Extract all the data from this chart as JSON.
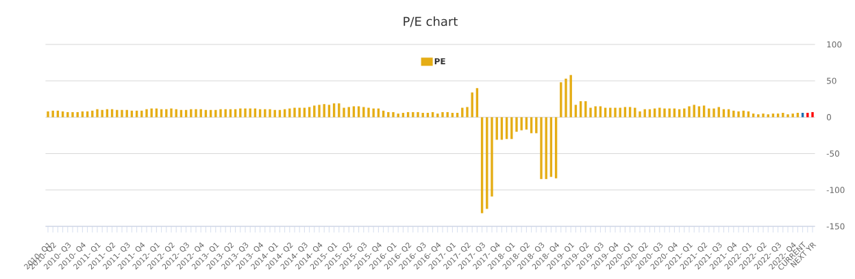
{
  "chart_data": {
    "type": "bar",
    "title": "P/E chart",
    "categories": [
      "2010- Q1",
      "2010- Q2",
      null,
      null,
      "2010- Q3",
      null,
      null,
      "2010- Q4",
      null,
      null,
      "2011- Q1",
      null,
      null,
      "2011- Q2",
      null,
      null,
      "2011- Q3",
      null,
      null,
      "2011- Q4",
      null,
      null,
      "2012- Q1",
      null,
      null,
      "2012- Q2",
      null,
      null,
      "2012- Q3",
      null,
      null,
      "2012- Q4",
      null,
      null,
      "2013- Q1",
      null,
      null,
      "2013- Q2",
      null,
      null,
      "2013- Q3",
      null,
      null,
      "2013- Q4",
      null,
      null,
      "2014- Q1",
      null,
      null,
      "2014- Q2",
      null,
      null,
      "2014- Q3",
      null,
      null,
      "2014- Q4",
      null,
      null,
      "2015- Q1",
      null,
      null,
      "2015- Q2",
      null,
      null,
      "2015- Q3",
      null,
      null,
      "2015- Q4",
      null,
      null,
      "2016- Q1",
      null,
      null,
      "2016- Q2",
      null,
      null,
      "2016- Q3",
      null,
      null,
      "2016- Q4",
      null,
      null,
      "2017- Q1",
      null,
      null,
      "2017- Q2",
      null,
      null,
      "2017- Q3",
      null,
      null,
      "2017- Q4",
      null,
      null,
      "2018- Q1",
      null,
      null,
      "2018- Q2",
      null,
      null,
      "2018- Q3",
      null,
      null,
      "2018- Q4",
      null,
      null,
      "2019- Q1",
      null,
      null,
      "2019- Q2",
      null,
      null,
      "2019- Q3",
      null,
      null,
      "2019- Q4",
      null,
      null,
      "2020- Q1",
      null,
      null,
      "2020- Q2",
      null,
      null,
      "2020- Q3",
      null,
      null,
      "2020- Q4",
      null,
      null,
      "2021- Q1",
      null,
      null,
      "2021- Q2",
      null,
      null,
      "2021- Q3",
      null,
      null,
      "2021- Q4",
      null,
      null,
      "2022- Q1",
      null,
      null,
      "2022- Q2",
      null,
      null,
      "2022- Q3",
      null,
      null,
      "2022- Q4",
      null,
      "CURRENT",
      null,
      "NEXT YR"
    ],
    "series": [
      {
        "name": "PE",
        "color": "#e5ad15",
        "values": [
          8,
          9,
          9,
          8,
          7,
          7,
          7,
          8,
          8,
          9,
          11,
          10,
          11,
          11,
          10,
          10,
          10,
          9,
          9,
          9,
          11,
          12,
          12,
          11,
          11,
          12,
          11,
          10,
          10,
          11,
          11,
          11,
          10,
          10,
          10,
          11,
          11,
          11,
          11,
          12,
          12,
          12,
          12,
          11,
          11,
          11,
          10,
          10,
          11,
          12,
          13,
          13,
          13,
          14,
          16,
          17,
          18,
          17,
          19,
          19,
          13,
          14,
          15,
          15,
          14,
          13,
          12,
          12,
          9,
          7,
          7,
          5,
          6,
          7,
          7,
          7,
          6,
          6,
          7,
          5,
          7,
          7,
          6,
          6,
          13,
          14,
          34,
          40,
          -132,
          -126,
          -109,
          -31,
          -31,
          -30,
          -30,
          -20,
          -18,
          -17,
          -22,
          -22,
          -85,
          -85,
          -82,
          -84,
          48,
          53,
          58,
          17,
          22,
          22,
          13,
          15,
          15,
          13,
          13,
          13,
          13,
          14,
          14,
          13,
          8,
          11,
          11,
          12,
          13,
          12,
          12,
          12,
          11,
          12,
          15,
          17,
          15,
          16,
          12,
          12,
          14,
          11,
          11,
          9,
          8,
          9,
          8,
          5,
          4,
          5,
          4,
          5,
          5,
          6,
          4,
          5,
          6,
          6,
          6,
          7
        ],
        "colors": [
          "#e5ad15",
          "#e5ad15",
          "#e5ad15",
          "#e5ad15",
          "#e5ad15",
          "#e5ad15",
          "#e5ad15",
          "#e5ad15",
          "#e5ad15",
          "#e5ad15",
          "#e5ad15",
          "#e5ad15",
          "#e5ad15",
          "#e5ad15",
          "#e5ad15",
          "#e5ad15",
          "#e5ad15",
          "#e5ad15",
          "#e5ad15",
          "#e5ad15",
          "#e5ad15",
          "#e5ad15",
          "#e5ad15",
          "#e5ad15",
          "#e5ad15",
          "#e5ad15",
          "#e5ad15",
          "#e5ad15",
          "#e5ad15",
          "#e5ad15",
          "#e5ad15",
          "#e5ad15",
          "#e5ad15",
          "#e5ad15",
          "#e5ad15",
          "#e5ad15",
          "#e5ad15",
          "#e5ad15",
          "#e5ad15",
          "#e5ad15",
          "#e5ad15",
          "#e5ad15",
          "#e5ad15",
          "#e5ad15",
          "#e5ad15",
          "#e5ad15",
          "#e5ad15",
          "#e5ad15",
          "#e5ad15",
          "#e5ad15",
          "#e5ad15",
          "#e5ad15",
          "#e5ad15",
          "#e5ad15",
          "#e5ad15",
          "#e5ad15",
          "#e5ad15",
          "#e5ad15",
          "#e5ad15",
          "#e5ad15",
          "#e5ad15",
          "#e5ad15",
          "#e5ad15",
          "#e5ad15",
          "#e5ad15",
          "#e5ad15",
          "#e5ad15",
          "#e5ad15",
          "#e5ad15",
          "#e5ad15",
          "#e5ad15",
          "#e5ad15",
          "#e5ad15",
          "#e5ad15",
          "#e5ad15",
          "#e5ad15",
          "#e5ad15",
          "#e5ad15",
          "#e5ad15",
          "#e5ad15",
          "#e5ad15",
          "#e5ad15",
          "#e5ad15",
          "#e5ad15",
          "#e5ad15",
          "#e5ad15",
          "#e5ad15",
          "#e5ad15",
          "#e5ad15",
          "#e5ad15",
          "#e5ad15",
          "#e5ad15",
          "#e5ad15",
          "#e5ad15",
          "#e5ad15",
          "#e5ad15",
          "#e5ad15",
          "#e5ad15",
          "#e5ad15",
          "#e5ad15",
          "#e5ad15",
          "#e5ad15",
          "#e5ad15",
          "#e5ad15",
          "#e5ad15",
          "#e5ad15",
          "#e5ad15",
          "#e5ad15",
          "#e5ad15",
          "#e5ad15",
          "#e5ad15",
          "#e5ad15",
          "#e5ad15",
          "#e5ad15",
          "#e5ad15",
          "#e5ad15",
          "#e5ad15",
          "#e5ad15",
          "#e5ad15",
          "#e5ad15",
          "#e5ad15",
          "#e5ad15",
          "#e5ad15",
          "#e5ad15",
          "#e5ad15",
          "#e5ad15",
          "#e5ad15",
          "#e5ad15",
          "#e5ad15",
          "#e5ad15",
          "#e5ad15",
          "#e5ad15",
          "#e5ad15",
          "#e5ad15",
          "#e5ad15",
          "#e5ad15",
          "#e5ad15",
          "#e5ad15",
          "#e5ad15",
          "#e5ad15",
          "#e5ad15",
          "#e5ad15",
          "#e5ad15",
          "#e5ad15",
          "#e5ad15",
          "#e5ad15",
          "#e5ad15",
          "#e5ad15",
          "#e5ad15",
          "#e5ad15",
          "#e5ad15",
          "#e5ad15",
          "#e5ad15",
          "#1e6fb0",
          "#ff0000",
          "#ff0000"
        ]
      }
    ],
    "ylim": [
      -150,
      100
    ],
    "yticks": [
      -150,
      -100,
      -50,
      0,
      50,
      100
    ],
    "grid": "y",
    "legend": "top"
  }
}
